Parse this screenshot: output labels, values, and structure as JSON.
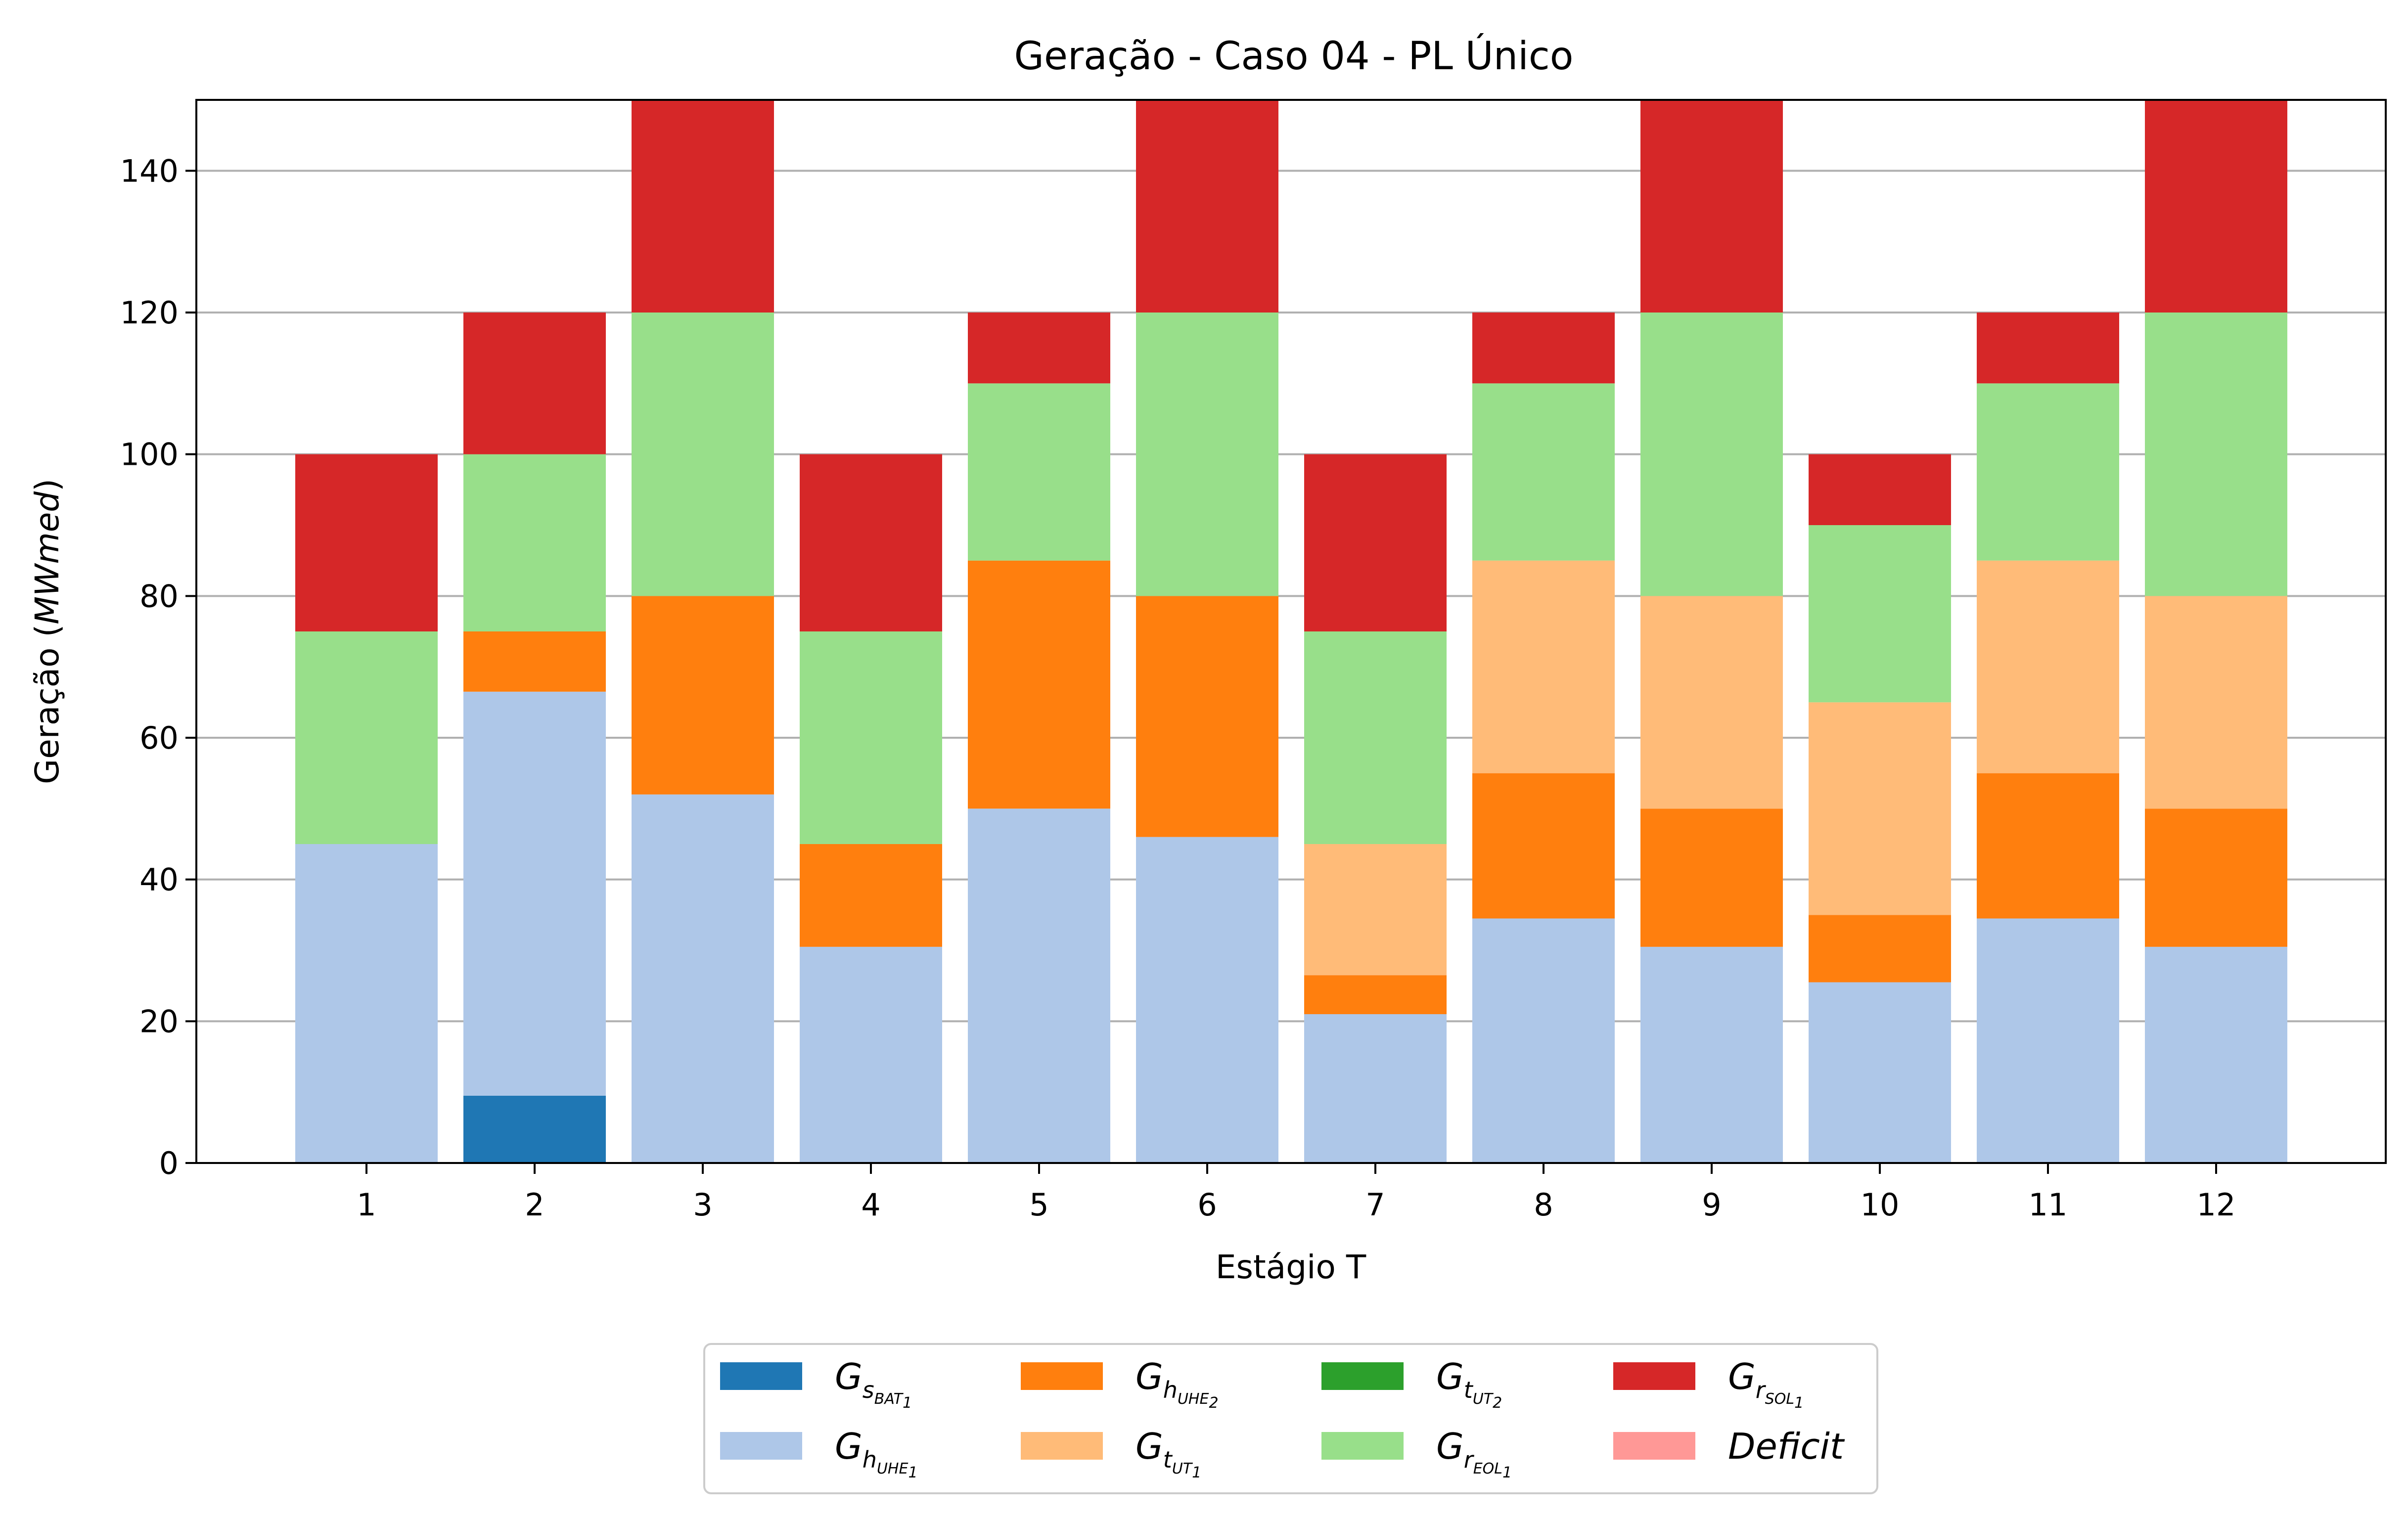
{
  "chart_data": {
    "type": "bar",
    "stacked": true,
    "title": "Geração - Caso 04 - PL Único",
    "xlabel": "Estágio T",
    "ylabel": "Geração (MWmed)",
    "ylabel_parts": {
      "prefix": "Geração (",
      "unit": "MWmed",
      "suffix": ")"
    },
    "ylim": [
      0,
      150
    ],
    "yticks": [
      0,
      20,
      40,
      60,
      80,
      100,
      120,
      140
    ],
    "grid": "y",
    "legend_position": "bottom-center",
    "legend_columns": 4,
    "categories": [
      "1",
      "2",
      "3",
      "4",
      "5",
      "6",
      "7",
      "8",
      "9",
      "10",
      "11",
      "12"
    ],
    "series": [
      {
        "name": "G_s_BAT1",
        "legend": {
          "base": "G",
          "sub": "s",
          "sub2": "BAT",
          "idx": "1"
        },
        "color": "#1f77b4",
        "values": [
          0,
          9.5,
          0,
          0,
          0,
          0,
          0,
          0,
          0,
          0,
          0,
          0
        ]
      },
      {
        "name": "G_h_UHE1",
        "legend": {
          "base": "G",
          "sub": "h",
          "sub2": "UHE",
          "idx": "1"
        },
        "color": "#aec7e8",
        "values": [
          45,
          57,
          52,
          30.5,
          50,
          46,
          21,
          34.5,
          30.5,
          25.5,
          34.5,
          30.5
        ]
      },
      {
        "name": "G_h_UHE2",
        "legend": {
          "base": "G",
          "sub": "h",
          "sub2": "UHE",
          "idx": "2"
        },
        "color": "#ff7f0e",
        "values": [
          0,
          8.5,
          28,
          14.5,
          35,
          34,
          5.5,
          20.5,
          19.5,
          9.5,
          20.5,
          19.5
        ]
      },
      {
        "name": "G_t_UT1",
        "legend": {
          "base": "G",
          "sub": "t",
          "sub2": "UT",
          "idx": "1"
        },
        "color": "#ffbb78",
        "values": [
          0,
          0,
          0,
          0,
          0,
          0,
          18.5,
          30,
          30,
          30,
          30,
          30
        ]
      },
      {
        "name": "G_t_UT2",
        "legend": {
          "base": "G",
          "sub": "t",
          "sub2": "UT",
          "idx": "2"
        },
        "color": "#2ca02c",
        "values": [
          0,
          0,
          0,
          0,
          0,
          0,
          0,
          0,
          0,
          0,
          0,
          0
        ]
      },
      {
        "name": "G_r_EOL1",
        "legend": {
          "base": "G",
          "sub": "r",
          "sub2": "EOL",
          "idx": "1"
        },
        "color": "#98df8a",
        "values": [
          30,
          25,
          40,
          30,
          25,
          40,
          30,
          25,
          40,
          25,
          25,
          40
        ]
      },
      {
        "name": "G_r_SOL1",
        "legend": {
          "base": "G",
          "sub": "r",
          "sub2": "SOL",
          "idx": "1"
        },
        "color": "#d62728",
        "values": [
          25,
          20,
          30,
          25,
          10,
          30,
          25,
          10,
          30,
          10,
          10,
          30
        ]
      },
      {
        "name": "Deficit",
        "legend": {
          "base": "Deficit"
        },
        "color": "#ff9896",
        "values": [
          0,
          0,
          0,
          0,
          0,
          0,
          0,
          0,
          0,
          0,
          0,
          0
        ]
      }
    ],
    "legend_order": [
      "G_s_BAT1",
      "G_h_UHE1",
      "G_h_UHE2",
      "G_t_UT1",
      "G_t_UT2",
      "G_r_EOL1",
      "G_r_SOL1",
      "Deficit"
    ]
  }
}
